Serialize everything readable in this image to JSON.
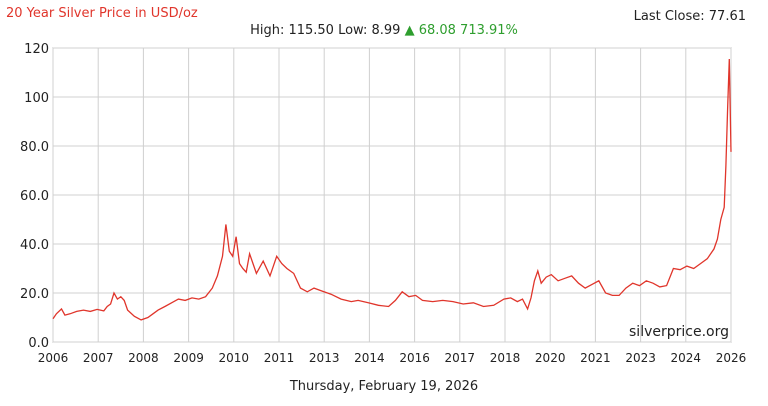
{
  "header": {
    "title": "20 Year Silver Price in USD/oz",
    "last_close_label": "Last Close: 77.61",
    "high_low_label": "High: 115.50 Low: 8.99",
    "change_label": "▲ 68.08 713.91%"
  },
  "footer": {
    "date": "Thursday, February 19, 2026"
  },
  "chart_data": {
    "type": "line",
    "title": "20 Year Silver Price in USD/oz",
    "xlabel": "",
    "ylabel": "",
    "xlim": [
      2006,
      2026
    ],
    "ylim": [
      0,
      120
    ],
    "grid": true,
    "x_ticks": [
      "2006",
      "2007",
      "2008",
      "2009",
      "2010",
      "2011",
      "2013",
      "2014",
      "2016",
      "2017",
      "2018",
      "2020",
      "2021",
      "2023",
      "2024",
      "2026"
    ],
    "y_ticks": [
      "0.0",
      "20.0",
      "40.0",
      "60.0",
      "80.0",
      "100",
      "120"
    ],
    "watermark": "silverprice.org",
    "colors": {
      "line": "#e0352b",
      "grid": "#d0d0d0",
      "axis": "#999999"
    },
    "series": [
      {
        "x": [
          2006.0,
          2006.1,
          2006.25,
          2006.35,
          2006.5,
          2006.7,
          2006.9,
          2007.1,
          2007.3,
          2007.5,
          2007.6,
          2007.7,
          2007.8,
          2007.9,
          2008.0,
          2008.1,
          2008.2,
          2008.4,
          2008.6,
          2008.8,
          2008.95,
          2009.1,
          2009.3,
          2009.5,
          2009.7,
          2009.9,
          2010.1,
          2010.3,
          2010.5,
          2010.7,
          2010.85,
          2011.0,
          2011.1,
          2011.2,
          2011.3,
          2011.4,
          2011.5,
          2011.6,
          2011.7,
          2011.8,
          2011.9,
          2012.0,
          2012.2,
          2012.4,
          2012.6,
          2012.75,
          2012.9,
          2013.1,
          2013.3,
          2013.5,
          2013.7,
          2013.9,
          2014.2,
          2014.5,
          2014.8,
          2015.0,
          2015.3,
          2015.6,
          2015.9,
          2016.1,
          2016.3,
          2016.5,
          2016.7,
          2016.9,
          2017.2,
          2017.5,
          2017.8,
          2018.1,
          2018.4,
          2018.7,
          2019.0,
          2019.3,
          2019.5,
          2019.7,
          2019.85,
          2020.0,
          2020.1,
          2020.2,
          2020.3,
          2020.4,
          2020.55,
          2020.7,
          2020.9,
          2021.1,
          2021.3,
          2021.5,
          2021.7,
          2021.9,
          2022.1,
          2022.3,
          2022.5,
          2022.7,
          2022.9,
          2023.1,
          2023.3,
          2023.5,
          2023.7,
          2023.9,
          2024.1,
          2024.3,
          2024.5,
          2024.7,
          2024.9,
          2025.1,
          2025.3,
          2025.5,
          2025.6,
          2025.7,
          2025.8,
          2025.85,
          2025.9,
          2025.95,
          2026.0
        ],
        "y": [
          9.5,
          11.5,
          13.5,
          11.0,
          11.5,
          12.5,
          13.0,
          12.5,
          13.3,
          12.7,
          14.5,
          15.5,
          20.0,
          17.5,
          18.5,
          17.0,
          13.0,
          10.5,
          9.0,
          10.0,
          11.5,
          13.0,
          14.5,
          16.0,
          17.5,
          17.0,
          18.0,
          17.5,
          18.5,
          22.0,
          27.0,
          35.0,
          48.0,
          37.0,
          35.0,
          43.0,
          32.0,
          30.0,
          28.5,
          36.0,
          32.0,
          28.0,
          33.0,
          27.0,
          35.0,
          32.0,
          30.0,
          28.0,
          22.0,
          20.5,
          22.0,
          21.0,
          19.5,
          17.5,
          16.5,
          17.0,
          16.0,
          15.0,
          14.5,
          17.0,
          20.5,
          18.5,
          19.0,
          17.0,
          16.5,
          17.0,
          16.5,
          15.5,
          16.0,
          14.5,
          15.0,
          17.5,
          18.0,
          16.5,
          17.5,
          13.5,
          18.0,
          25.0,
          29.0,
          24.0,
          26.5,
          27.5,
          25.0,
          26.0,
          27.0,
          24.0,
          22.0,
          23.5,
          25.0,
          20.0,
          19.0,
          19.0,
          22.0,
          24.0,
          23.0,
          25.0,
          24.0,
          22.5,
          23.0,
          30.0,
          29.5,
          31.0,
          30.0,
          32.0,
          34.0,
          38.0,
          42.0,
          50.0,
          55.0,
          72.0,
          95.0,
          115.5,
          77.61
        ]
      }
    ]
  }
}
